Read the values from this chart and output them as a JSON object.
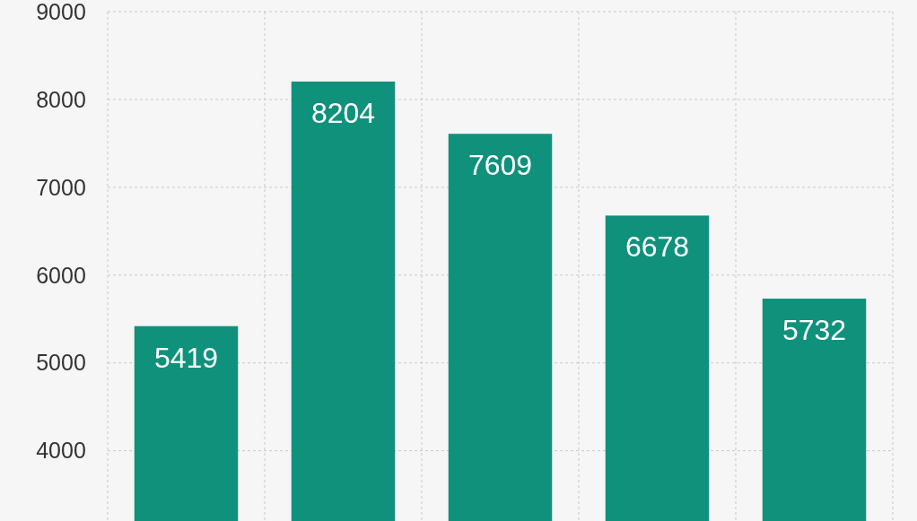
{
  "chart_data": {
    "type": "bar",
    "categories": [
      null,
      null,
      null,
      null,
      null
    ],
    "values": [
      5419,
      8204,
      7609,
      6678,
      5732
    ],
    "color": "#10917c",
    "ylim": [
      3200,
      9000
    ],
    "yticks": [
      4000,
      5000,
      6000,
      7000,
      8000,
      9000
    ],
    "grid": true,
    "data_labels": true
  }
}
